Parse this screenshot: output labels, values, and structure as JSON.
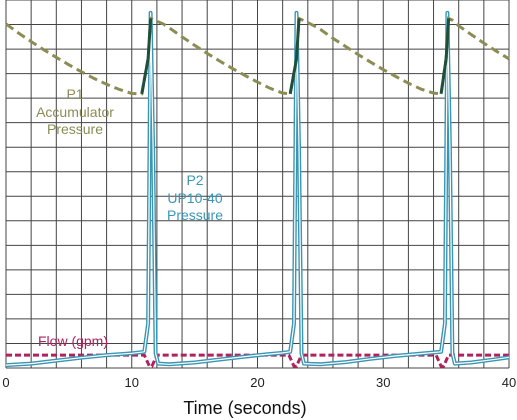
{
  "chart_data": {
    "type": "line",
    "title": "",
    "xlabel": "Time (seconds)",
    "ylabel": "",
    "xlim": [
      0,
      40
    ],
    "ylim": [
      0,
      100
    ],
    "xticks": [
      0,
      10,
      20,
      30,
      40
    ],
    "xtick_labels": [
      "0",
      "10",
      "20",
      "30",
      "40"
    ],
    "grid": true,
    "y_grid_count": 15,
    "legend": "none",
    "colors": {
      "p1": "#8c8c55",
      "p1_tip": "#1f4f3a",
      "p2": "#3b96b4",
      "flow": "#b0225e",
      "grid": "#444444",
      "background": "#ffffff"
    },
    "annotations": [
      {
        "id": "p1",
        "lines": [
          "P1",
          "Accumulator",
          "Pressure"
        ],
        "color": "#8c8c55"
      },
      {
        "id": "p2",
        "lines": [
          "P2",
          "UP10-40",
          "Pressure"
        ],
        "color": "#3b96b4"
      },
      {
        "id": "flow",
        "lines": [
          "Flow (gpm)"
        ],
        "color": "#b0225e"
      }
    ],
    "series": [
      {
        "id": "p1",
        "style": "dashed",
        "x": [
          0,
          1,
          2,
          3,
          4,
          5,
          6,
          7,
          8,
          9,
          10,
          10.8,
          11.3,
          11.5,
          11.8,
          12.5,
          13,
          14,
          15,
          16,
          17,
          18,
          19,
          20,
          21,
          22,
          22.6,
          23.1,
          23.3,
          23.6,
          24.5,
          25,
          26,
          27,
          28,
          29,
          30,
          31,
          32,
          33,
          34,
          34.6,
          35.0,
          35.2,
          35.5,
          36,
          37,
          38,
          39,
          40
        ],
        "y": [
          93.5,
          91.0,
          88.7,
          86.5,
          84.4,
          82.4,
          80.5,
          78.7,
          77.1,
          75.7,
          74.6,
          74.5,
          84,
          95,
          94.5,
          93.5,
          92.4,
          90.0,
          87.7,
          85.5,
          83.4,
          81.4,
          79.5,
          77.7,
          76.0,
          74.7,
          74.5,
          84,
          95,
          94.5,
          93.0,
          92.0,
          89.6,
          87.4,
          85.2,
          83.1,
          81.1,
          79.2,
          77.4,
          75.8,
          74.7,
          74.5,
          84,
          95,
          94.5,
          93.0,
          90.6,
          88.3,
          86.1,
          84.0
        ]
      },
      {
        "id": "p2",
        "style": "solid",
        "x": [
          0,
          2,
          4,
          6,
          8,
          10,
          11,
          11.3,
          11.5,
          11.7,
          11.9,
          12.1,
          13,
          15,
          17,
          19,
          21,
          22,
          22.6,
          22.9,
          23.1,
          23.3,
          23.5,
          23.7,
          25,
          27,
          29,
          31,
          33,
          34,
          34.6,
          34.9,
          35.1,
          35.3,
          35.5,
          35.7,
          37,
          39,
          40
        ],
        "y": [
          0.8,
          1.2,
          2.0,
          2.8,
          3.5,
          4.0,
          4.4,
          12,
          96.5,
          60,
          4,
          1.2,
          1.0,
          1.5,
          2.3,
          3.1,
          3.8,
          4.1,
          4.4,
          12,
          96.5,
          60,
          4,
          1.2,
          1.0,
          1.6,
          2.5,
          3.3,
          3.9,
          4.2,
          4.4,
          12,
          96.5,
          60,
          4,
          1.2,
          1.5,
          2.4,
          2.9
        ]
      },
      {
        "id": "flow",
        "style": "dotted",
        "x": [
          0,
          11,
          11.4,
          11.6,
          12,
          22.5,
          22.9,
          23.1,
          23.5,
          34.2,
          34.6,
          34.8,
          35.2,
          40
        ],
        "y": [
          3.5,
          3.5,
          0.5,
          0.5,
          3.5,
          3.5,
          0.5,
          0.5,
          3.5,
          3.5,
          0.5,
          0.5,
          3.5,
          3.5
        ]
      }
    ]
  }
}
